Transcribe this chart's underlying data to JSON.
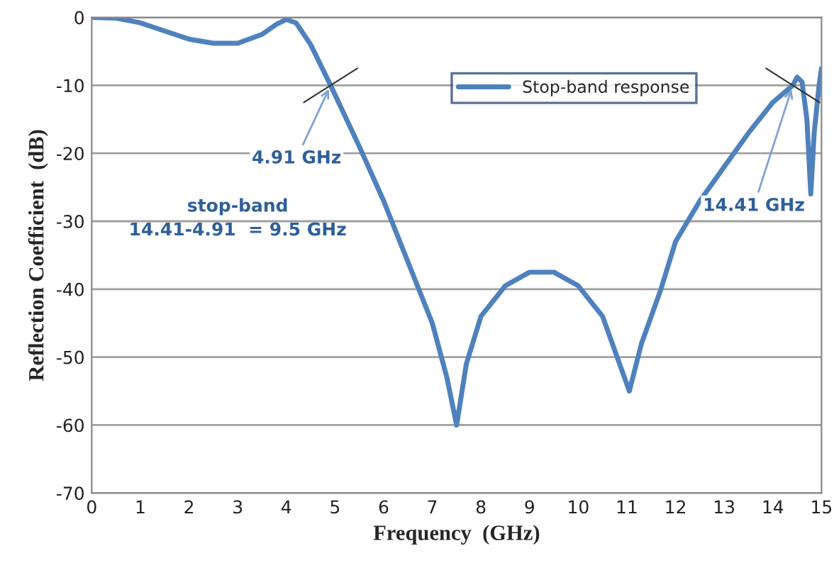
{
  "chart_data": {
    "type": "line",
    "xlabel": "Frequency  (GHz)",
    "ylabel": "Reflection Coefficient  (dB)",
    "x": [
      0,
      0.5,
      1,
      1.5,
      2,
      2.5,
      3,
      3.5,
      3.8,
      4.0,
      4.2,
      4.5,
      4.91,
      5.5,
      6,
      6.5,
      7,
      7.3,
      7.5,
      7.7,
      8,
      8.5,
      9,
      9.5,
      10,
      10.5,
      10.8,
      11.05,
      11.3,
      11.7,
      12,
      12.5,
      13,
      13.5,
      14,
      14.41,
      14.5,
      14.6,
      14.7,
      14.78,
      14.85,
      14.95,
      15
    ],
    "series": [
      {
        "name": "Stop-band response",
        "color": "#4f81bd",
        "values": [
          0,
          -0.1,
          -0.8,
          -2,
          -3.2,
          -3.8,
          -3.8,
          -2.5,
          -1,
          -0.3,
          -0.8,
          -4,
          -10,
          -19,
          -27,
          -36,
          -45,
          -53,
          -60,
          -51,
          -44,
          -39.5,
          -37.5,
          -37.5,
          -39.5,
          -44,
          -50,
          -55,
          -48,
          -40,
          -33,
          -27,
          -22,
          -17,
          -12.5,
          -10,
          -8.8,
          -9.5,
          -15,
          -26,
          -17,
          -10,
          -7.5
        ]
      }
    ],
    "annotations": [
      {
        "text": "4.91 GHz",
        "x": 4.91,
        "y": -10
      },
      {
        "text": "14.41 GHz",
        "x": 14.41,
        "y": -10
      },
      "stop-band\n14.41-4.91  = 9.5 GHz"
    ],
    "xlim": [
      0,
      15
    ],
    "xticks": [
      0,
      1,
      2,
      3,
      4,
      5,
      6,
      7,
      8,
      9,
      10,
      11,
      12,
      13,
      14,
      15
    ],
    "ylim": [
      -70,
      0
    ],
    "yticks": [
      -70,
      -60,
      -50,
      -40,
      -30,
      -20,
      -10,
      0
    ],
    "grid": "y",
    "legend": "top right",
    "line_style": "solid",
    "marker": "none"
  }
}
